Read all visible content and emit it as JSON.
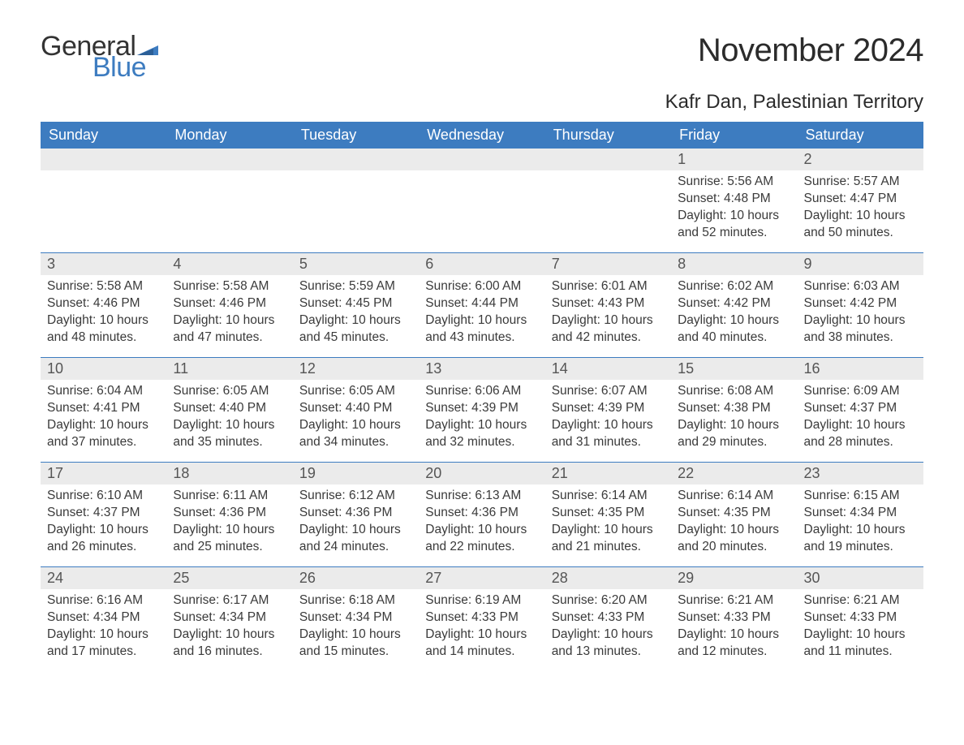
{
  "logo": {
    "text_general": "General",
    "text_blue": "Blue",
    "flag_color": "#3d7cc0"
  },
  "title": "November 2024",
  "location": "Kafr Dan, Palestinian Territory",
  "colors": {
    "header_bg": "#3d7cc0",
    "header_text": "#ffffff",
    "daynum_bg": "#ebebeb",
    "week_border": "#3d7cc0",
    "body_text": "#3a3a3a",
    "page_bg": "#ffffff"
  },
  "fonts": {
    "title_pt": 40,
    "location_pt": 24,
    "weekday_pt": 18,
    "daynum_pt": 18,
    "body_pt": 15.5
  },
  "weekdays": [
    "Sunday",
    "Monday",
    "Tuesday",
    "Wednesday",
    "Thursday",
    "Friday",
    "Saturday"
  ],
  "weeks": [
    [
      {
        "empty": true
      },
      {
        "empty": true
      },
      {
        "empty": true
      },
      {
        "empty": true
      },
      {
        "empty": true
      },
      {
        "day": "1",
        "sunrise": "Sunrise: 5:56 AM",
        "sunset": "Sunset: 4:48 PM",
        "daylight1": "Daylight: 10 hours",
        "daylight2": "and 52 minutes."
      },
      {
        "day": "2",
        "sunrise": "Sunrise: 5:57 AM",
        "sunset": "Sunset: 4:47 PM",
        "daylight1": "Daylight: 10 hours",
        "daylight2": "and 50 minutes."
      }
    ],
    [
      {
        "day": "3",
        "sunrise": "Sunrise: 5:58 AM",
        "sunset": "Sunset: 4:46 PM",
        "daylight1": "Daylight: 10 hours",
        "daylight2": "and 48 minutes."
      },
      {
        "day": "4",
        "sunrise": "Sunrise: 5:58 AM",
        "sunset": "Sunset: 4:46 PM",
        "daylight1": "Daylight: 10 hours",
        "daylight2": "and 47 minutes."
      },
      {
        "day": "5",
        "sunrise": "Sunrise: 5:59 AM",
        "sunset": "Sunset: 4:45 PM",
        "daylight1": "Daylight: 10 hours",
        "daylight2": "and 45 minutes."
      },
      {
        "day": "6",
        "sunrise": "Sunrise: 6:00 AM",
        "sunset": "Sunset: 4:44 PM",
        "daylight1": "Daylight: 10 hours",
        "daylight2": "and 43 minutes."
      },
      {
        "day": "7",
        "sunrise": "Sunrise: 6:01 AM",
        "sunset": "Sunset: 4:43 PM",
        "daylight1": "Daylight: 10 hours",
        "daylight2": "and 42 minutes."
      },
      {
        "day": "8",
        "sunrise": "Sunrise: 6:02 AM",
        "sunset": "Sunset: 4:42 PM",
        "daylight1": "Daylight: 10 hours",
        "daylight2": "and 40 minutes."
      },
      {
        "day": "9",
        "sunrise": "Sunrise: 6:03 AM",
        "sunset": "Sunset: 4:42 PM",
        "daylight1": "Daylight: 10 hours",
        "daylight2": "and 38 minutes."
      }
    ],
    [
      {
        "day": "10",
        "sunrise": "Sunrise: 6:04 AM",
        "sunset": "Sunset: 4:41 PM",
        "daylight1": "Daylight: 10 hours",
        "daylight2": "and 37 minutes."
      },
      {
        "day": "11",
        "sunrise": "Sunrise: 6:05 AM",
        "sunset": "Sunset: 4:40 PM",
        "daylight1": "Daylight: 10 hours",
        "daylight2": "and 35 minutes."
      },
      {
        "day": "12",
        "sunrise": "Sunrise: 6:05 AM",
        "sunset": "Sunset: 4:40 PM",
        "daylight1": "Daylight: 10 hours",
        "daylight2": "and 34 minutes."
      },
      {
        "day": "13",
        "sunrise": "Sunrise: 6:06 AM",
        "sunset": "Sunset: 4:39 PM",
        "daylight1": "Daylight: 10 hours",
        "daylight2": "and 32 minutes."
      },
      {
        "day": "14",
        "sunrise": "Sunrise: 6:07 AM",
        "sunset": "Sunset: 4:39 PM",
        "daylight1": "Daylight: 10 hours",
        "daylight2": "and 31 minutes."
      },
      {
        "day": "15",
        "sunrise": "Sunrise: 6:08 AM",
        "sunset": "Sunset: 4:38 PM",
        "daylight1": "Daylight: 10 hours",
        "daylight2": "and 29 minutes."
      },
      {
        "day": "16",
        "sunrise": "Sunrise: 6:09 AM",
        "sunset": "Sunset: 4:37 PM",
        "daylight1": "Daylight: 10 hours",
        "daylight2": "and 28 minutes."
      }
    ],
    [
      {
        "day": "17",
        "sunrise": "Sunrise: 6:10 AM",
        "sunset": "Sunset: 4:37 PM",
        "daylight1": "Daylight: 10 hours",
        "daylight2": "and 26 minutes."
      },
      {
        "day": "18",
        "sunrise": "Sunrise: 6:11 AM",
        "sunset": "Sunset: 4:36 PM",
        "daylight1": "Daylight: 10 hours",
        "daylight2": "and 25 minutes."
      },
      {
        "day": "19",
        "sunrise": "Sunrise: 6:12 AM",
        "sunset": "Sunset: 4:36 PM",
        "daylight1": "Daylight: 10 hours",
        "daylight2": "and 24 minutes."
      },
      {
        "day": "20",
        "sunrise": "Sunrise: 6:13 AM",
        "sunset": "Sunset: 4:36 PM",
        "daylight1": "Daylight: 10 hours",
        "daylight2": "and 22 minutes."
      },
      {
        "day": "21",
        "sunrise": "Sunrise: 6:14 AM",
        "sunset": "Sunset: 4:35 PM",
        "daylight1": "Daylight: 10 hours",
        "daylight2": "and 21 minutes."
      },
      {
        "day": "22",
        "sunrise": "Sunrise: 6:14 AM",
        "sunset": "Sunset: 4:35 PM",
        "daylight1": "Daylight: 10 hours",
        "daylight2": "and 20 minutes."
      },
      {
        "day": "23",
        "sunrise": "Sunrise: 6:15 AM",
        "sunset": "Sunset: 4:34 PM",
        "daylight1": "Daylight: 10 hours",
        "daylight2": "and 19 minutes."
      }
    ],
    [
      {
        "day": "24",
        "sunrise": "Sunrise: 6:16 AM",
        "sunset": "Sunset: 4:34 PM",
        "daylight1": "Daylight: 10 hours",
        "daylight2": "and 17 minutes."
      },
      {
        "day": "25",
        "sunrise": "Sunrise: 6:17 AM",
        "sunset": "Sunset: 4:34 PM",
        "daylight1": "Daylight: 10 hours",
        "daylight2": "and 16 minutes."
      },
      {
        "day": "26",
        "sunrise": "Sunrise: 6:18 AM",
        "sunset": "Sunset: 4:34 PM",
        "daylight1": "Daylight: 10 hours",
        "daylight2": "and 15 minutes."
      },
      {
        "day": "27",
        "sunrise": "Sunrise: 6:19 AM",
        "sunset": "Sunset: 4:33 PM",
        "daylight1": "Daylight: 10 hours",
        "daylight2": "and 14 minutes."
      },
      {
        "day": "28",
        "sunrise": "Sunrise: 6:20 AM",
        "sunset": "Sunset: 4:33 PM",
        "daylight1": "Daylight: 10 hours",
        "daylight2": "and 13 minutes."
      },
      {
        "day": "29",
        "sunrise": "Sunrise: 6:21 AM",
        "sunset": "Sunset: 4:33 PM",
        "daylight1": "Daylight: 10 hours",
        "daylight2": "and 12 minutes."
      },
      {
        "day": "30",
        "sunrise": "Sunrise: 6:21 AM",
        "sunset": "Sunset: 4:33 PM",
        "daylight1": "Daylight: 10 hours",
        "daylight2": "and 11 minutes."
      }
    ]
  ]
}
